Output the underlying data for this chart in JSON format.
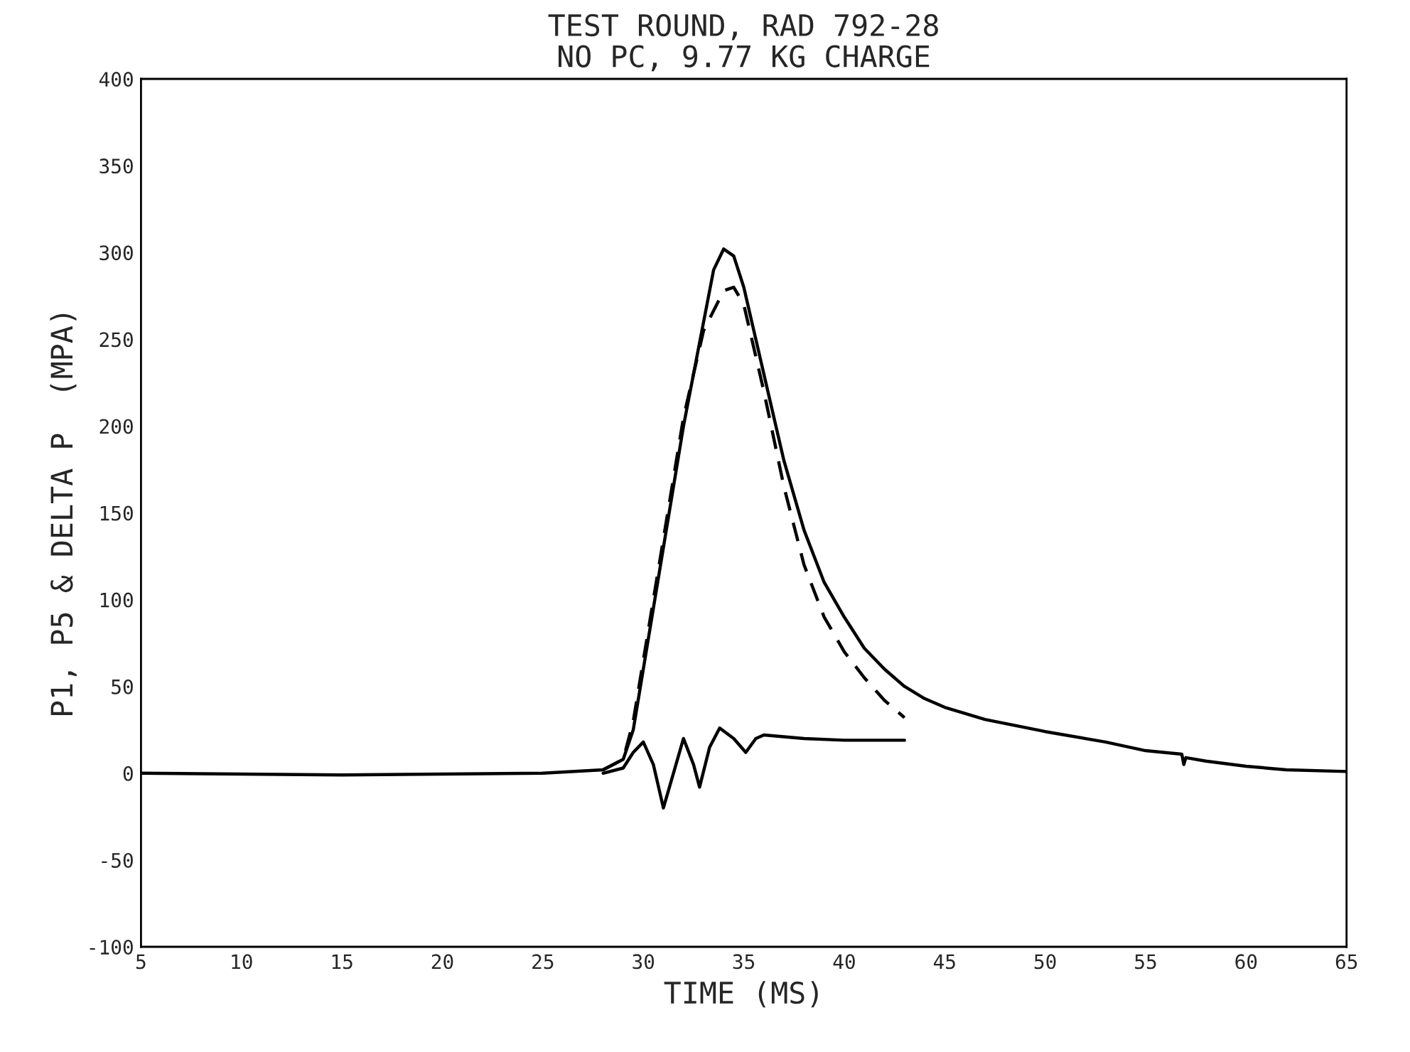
{
  "chart_data": {
    "type": "line",
    "title": "TEST ROUND, RAD 792-28\nNO PC, 9.77 KG CHARGE",
    "xlabel": "TIME (MS)",
    "ylabel": "P1, P5 & DELTA P  (MPA)",
    "xlim": [
      5,
      65
    ],
    "xticks": [
      5,
      10,
      15,
      20,
      25,
      30,
      35,
      40,
      45,
      50,
      55,
      60,
      65
    ],
    "ylim": [
      -100,
      400
    ],
    "yticks": [
      -100,
      -50,
      0,
      50,
      100,
      150,
      200,
      250,
      300,
      350,
      400
    ],
    "grid": false,
    "legend": false,
    "marker": "none",
    "series": [
      {
        "color": "#000000",
        "line_style": "solid",
        "x": [
          5,
          15,
          25,
          28,
          29,
          29.5,
          30,
          31,
          32,
          33,
          33.5,
          34,
          34.5,
          35,
          36,
          37,
          38,
          39,
          40,
          41,
          42,
          43,
          44,
          45,
          47,
          50,
          53,
          55,
          56.8,
          56.9,
          57,
          58,
          60,
          62,
          65
        ],
        "values": [
          0,
          -1,
          0,
          2,
          8,
          25,
          60,
          130,
          200,
          260,
          290,
          302,
          298,
          280,
          230,
          180,
          140,
          110,
          90,
          72,
          60,
          50,
          43,
          38,
          31,
          24,
          18,
          13,
          11,
          5,
          9,
          7,
          4,
          2,
          1
        ]
      },
      {
        "color": "#000000",
        "line_style": "dashed",
        "x": [
          28,
          29,
          29.5,
          30,
          31,
          32,
          33,
          34,
          34.5,
          35,
          36,
          37,
          38,
          39,
          40,
          41,
          42,
          43
        ],
        "values": [
          2,
          8,
          30,
          65,
          135,
          205,
          255,
          278,
          280,
          270,
          220,
          165,
          120,
          90,
          70,
          55,
          42,
          32
        ]
      },
      {
        "color": "#000000",
        "line_style": "solid",
        "x": [
          28,
          29,
          29.5,
          30,
          30.5,
          31,
          31.5,
          32,
          32.5,
          32.8,
          33.3,
          33.8,
          34.5,
          35.1,
          35.6,
          36,
          38,
          40,
          43
        ],
        "values": [
          0,
          3,
          12,
          18,
          5,
          -20,
          0,
          20,
          5,
          -8,
          15,
          26,
          20,
          12,
          20,
          22,
          20,
          19,
          19
        ]
      }
    ]
  }
}
